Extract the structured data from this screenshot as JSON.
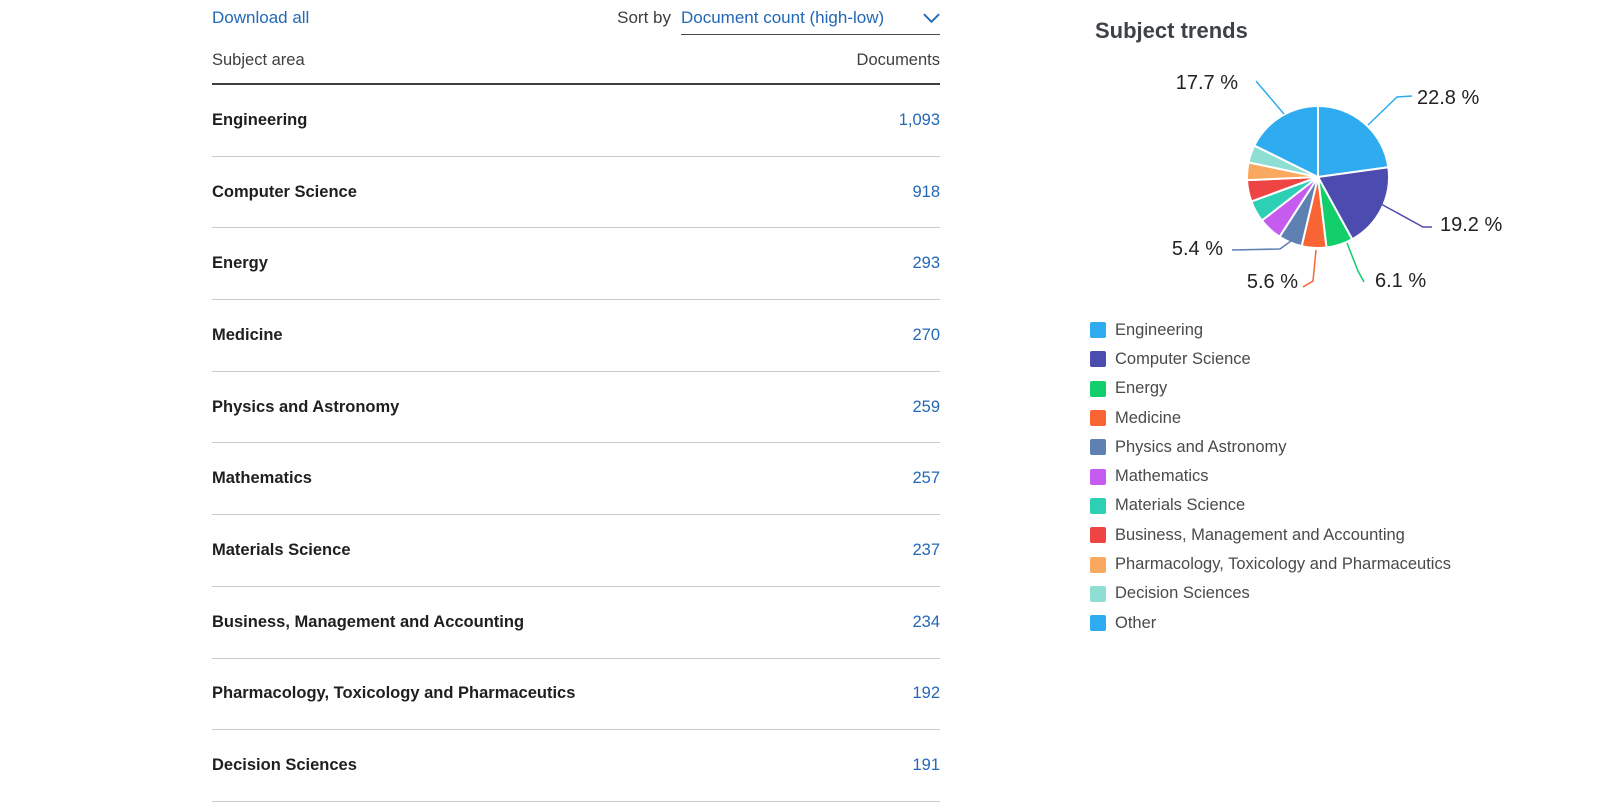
{
  "theme": {
    "link_color": "#2368B4",
    "subject_text_color": "#1F1F1F",
    "header_text_color": "#3F3F3F",
    "divider_light": "#CBCBCB",
    "divider_dark": "#3F3F3F"
  },
  "table": {
    "download_all_label": "Download all",
    "sort_by_label": "Sort by",
    "sort_value": "Document count (high-low)",
    "columns": {
      "subject": "Subject area",
      "documents": "Documents"
    },
    "rows": [
      {
        "subject": "Engineering",
        "documents": "1,093"
      },
      {
        "subject": "Computer Science",
        "documents": "918"
      },
      {
        "subject": "Energy",
        "documents": "293"
      },
      {
        "subject": "Medicine",
        "documents": "270"
      },
      {
        "subject": "Physics and Astronomy",
        "documents": "259"
      },
      {
        "subject": "Mathematics",
        "documents": "257"
      },
      {
        "subject": "Materials Science",
        "documents": "237"
      },
      {
        "subject": "Business, Management and Accounting",
        "documents": "234"
      },
      {
        "subject": "Pharmacology, Toxicology and Pharmaceutics",
        "documents": "192"
      },
      {
        "subject": "Decision Sciences",
        "documents": "191"
      }
    ]
  },
  "chart_data": {
    "type": "pie",
    "title": "Subject trends",
    "legend_position": "bottom-left",
    "slices": [
      {
        "label": "Engineering",
        "documents": 1093,
        "percent": 22.8,
        "percent_label": "22.8 %",
        "color": "#2EACEF"
      },
      {
        "label": "Computer Science",
        "documents": 918,
        "percent": 19.2,
        "percent_label": "19.2 %",
        "color": "#4B4BB0"
      },
      {
        "label": "Energy",
        "documents": 293,
        "percent": 6.1,
        "percent_label": "6.1 %",
        "color": "#12CF6C"
      },
      {
        "label": "Medicine",
        "documents": 270,
        "percent": 5.6,
        "percent_label": "5.6 %",
        "color": "#F96434"
      },
      {
        "label": "Physics and Astronomy",
        "documents": 259,
        "percent": 5.4,
        "percent_label": "5.4 %",
        "color": "#5F80B2"
      },
      {
        "label": "Mathematics",
        "documents": 257,
        "percent": 5.4,
        "percent_label": null,
        "color": "#C55CEF"
      },
      {
        "label": "Materials Science",
        "documents": 237,
        "percent": 4.9,
        "percent_label": null,
        "color": "#2DD0B4"
      },
      {
        "label": "Business, Management and Accounting",
        "documents": 234,
        "percent": 4.9,
        "percent_label": null,
        "color": "#EF4444"
      },
      {
        "label": "Pharmacology, Toxicology and Pharmaceutics",
        "documents": 192,
        "percent": 4.0,
        "percent_label": null,
        "color": "#F9A95F"
      },
      {
        "label": "Decision Sciences",
        "documents": 191,
        "percent": 4.0,
        "percent_label": null,
        "color": "#8FDED4"
      },
      {
        "label": "Other",
        "percent": 17.7,
        "percent_label": "17.7 %",
        "color": "#2EACEF"
      }
    ]
  }
}
